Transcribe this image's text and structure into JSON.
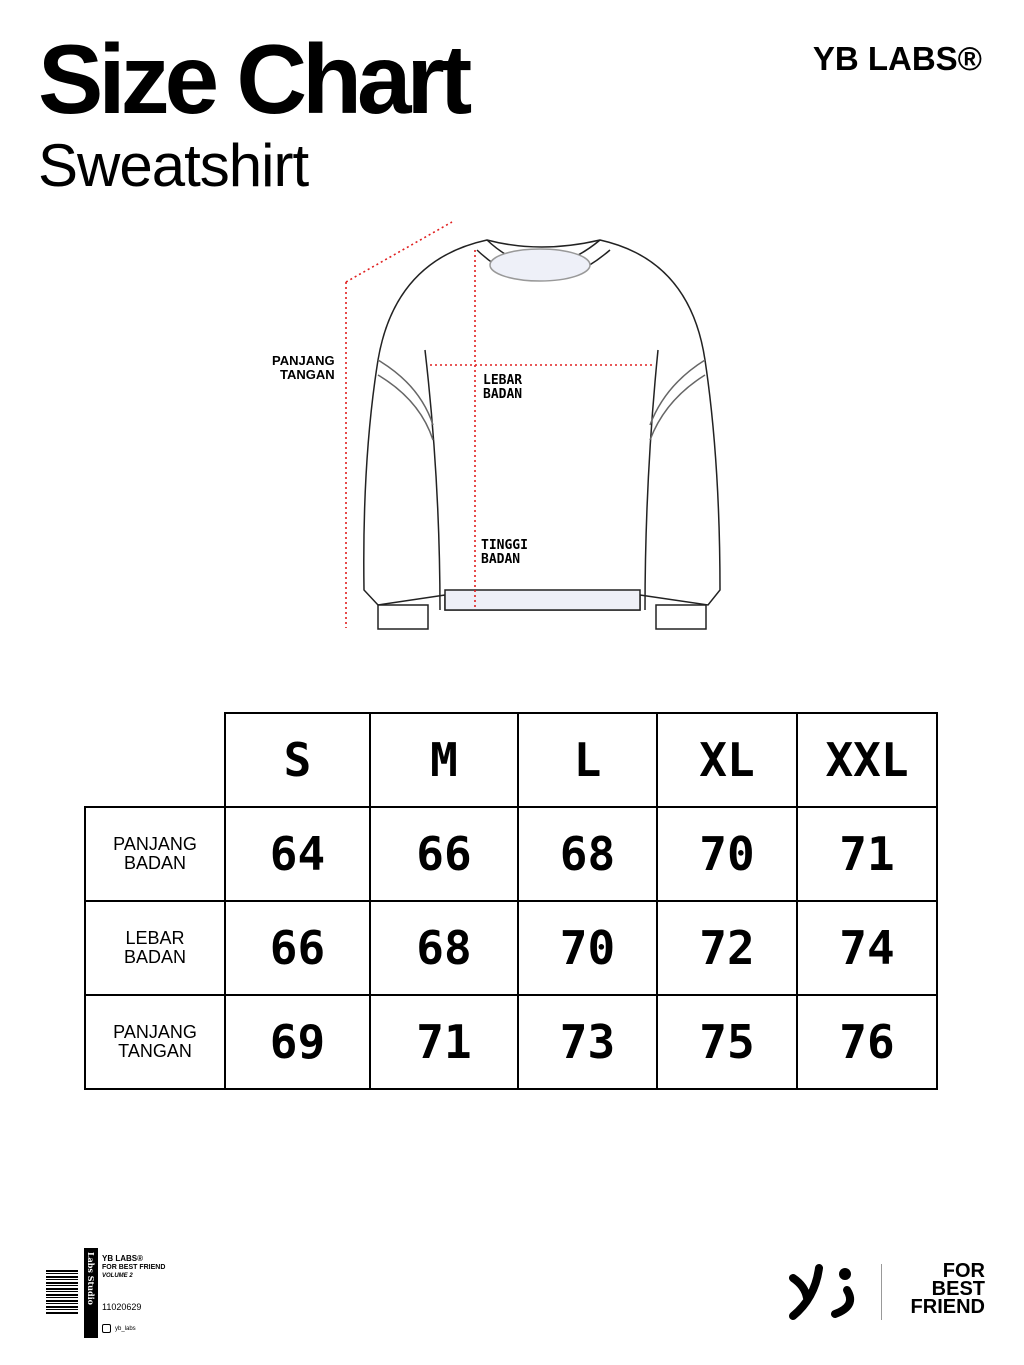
{
  "header": {
    "title": "Size Chart",
    "subtitle": "Sweatshirt",
    "brand": "YB LABS®"
  },
  "diagram": {
    "labels": {
      "sleeve": [
        "PANJANG",
        "TANGAN"
      ],
      "width": [
        "LEBAR",
        "BADAN"
      ],
      "height": [
        "TINGGI",
        "BADAN"
      ]
    },
    "measure_line_color": "#e02020"
  },
  "size_table": {
    "columns": [
      "S",
      "M",
      "L",
      "XL",
      "XXL"
    ],
    "rows": [
      {
        "label": [
          "PANJANG",
          "BADAN"
        ],
        "values": [
          "64",
          "66",
          "68",
          "70",
          "71"
        ]
      },
      {
        "label": [
          "LEBAR",
          "BADAN"
        ],
        "values": [
          "66",
          "68",
          "70",
          "72",
          "74"
        ]
      },
      {
        "label": [
          "PANJANG",
          "TANGAN"
        ],
        "values": [
          "69",
          "71",
          "73",
          "75",
          "76"
        ]
      }
    ]
  },
  "footer": {
    "tag": {
      "side_text": "Labs Studio",
      "brand": "YB LABS®",
      "line1": "FOR BEST FRIEND",
      "line2": "VOLUME 2",
      "code": "11020629",
      "instagram": "yb_labs"
    },
    "logo_text": [
      "FOR",
      "BEST",
      "FRIEND"
    ]
  }
}
